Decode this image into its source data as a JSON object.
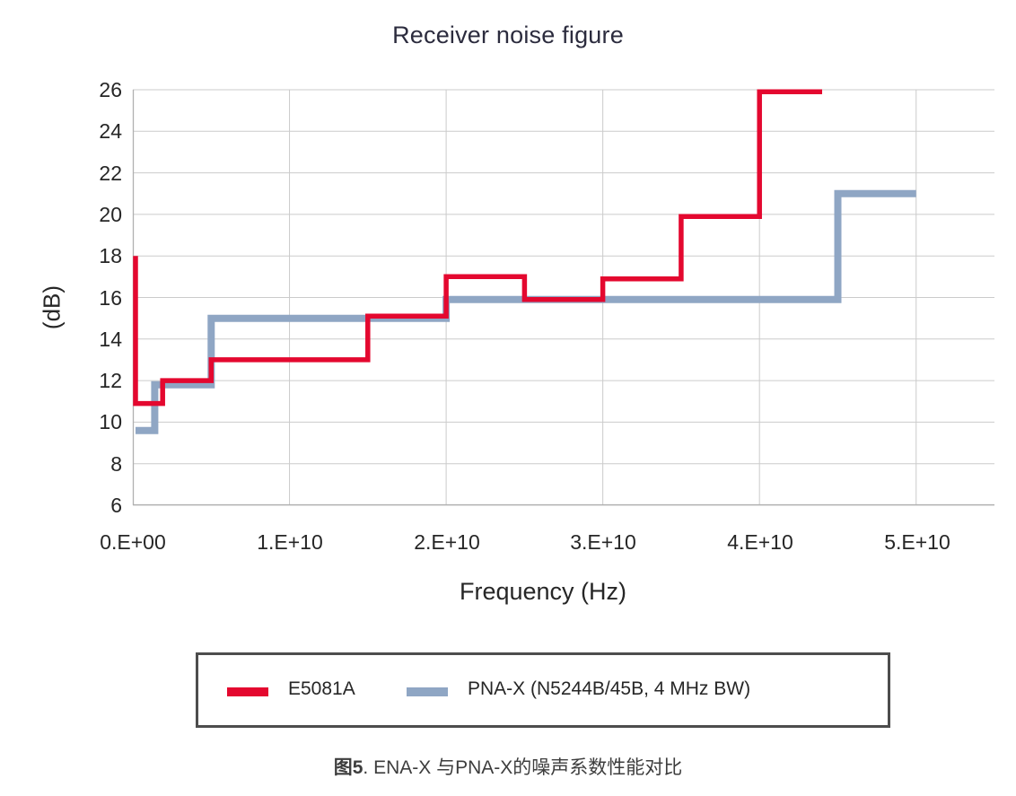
{
  "title": "Receiver noise figure",
  "chart_data": {
    "type": "line",
    "subtype": "step",
    "title": "Receiver noise figure",
    "xlabel": "Frequency (Hz)",
    "ylabel": "(dB)",
    "xlim": [
      0,
      55000000000.0
    ],
    "ylim": [
      6,
      26
    ],
    "grid": true,
    "legend_position": "bottom-box",
    "xtick_values": [
      0,
      10000000000.0,
      20000000000.0,
      30000000000.0,
      40000000000.0,
      50000000000.0
    ],
    "xtick_labels": [
      "0.E+00",
      "1.E+10",
      "2.E+10",
      "3.E+10",
      "4.E+10",
      "5.E+10"
    ],
    "ytick_values": [
      26,
      24,
      22,
      20,
      18,
      16,
      14,
      12,
      10,
      8,
      6
    ],
    "ytick_labels": [
      "26",
      "24",
      "22",
      "20",
      "18",
      "16",
      "14",
      "12",
      "10",
      "8",
      "6"
    ],
    "grid_color": "#cbcbcb",
    "axis_color": "#b0b0b0",
    "series": [
      {
        "name": "E5081A",
        "color": "#e4082f",
        "width": 5.5,
        "points": [
          [
            0,
            18
          ],
          [
            0,
            10.9
          ],
          [
            1900000000.0,
            10.9
          ],
          [
            1900000000.0,
            12.0
          ],
          [
            5000000000.0,
            12.0
          ],
          [
            5000000000.0,
            13.0
          ],
          [
            15000000000.0,
            13.0
          ],
          [
            15000000000.0,
            15.1
          ],
          [
            20000000000.0,
            15.1
          ],
          [
            20000000000.0,
            17.0
          ],
          [
            25000000000.0,
            17.0
          ],
          [
            25000000000.0,
            15.9
          ],
          [
            30000000000.0,
            15.9
          ],
          [
            30000000000.0,
            16.9
          ],
          [
            35000000000.0,
            16.9
          ],
          [
            35000000000.0,
            19.9
          ],
          [
            40000000000.0,
            19.9
          ],
          [
            40000000000.0,
            25.9
          ],
          [
            44000000000.0,
            25.9
          ]
        ]
      },
      {
        "name": "PNA-X (N5244B/45B, 4 MHz BW)",
        "color": "#8fa6c4",
        "width": 8,
        "points": [
          [
            0,
            9.6
          ],
          [
            1400000000.0,
            9.6
          ],
          [
            1400000000.0,
            11.8
          ],
          [
            5000000000.0,
            11.8
          ],
          [
            5000000000.0,
            15.0
          ],
          [
            20000000000.0,
            15.0
          ],
          [
            20000000000.0,
            15.9
          ],
          [
            45000000000.0,
            15.9
          ],
          [
            45000000000.0,
            21.0
          ],
          [
            50000000000.0,
            21.0
          ]
        ]
      }
    ]
  },
  "legend": {
    "items": [
      {
        "label": "E5081A",
        "color": "#e4082f"
      },
      {
        "label": "PNA-X (N5244B/45B, 4 MHz BW)",
        "color": "#8fa6c4"
      }
    ]
  },
  "caption": {
    "figure_label": "图5",
    "figure_text": ". ENA-X 与PNA-X的噪声系数性能对比"
  }
}
